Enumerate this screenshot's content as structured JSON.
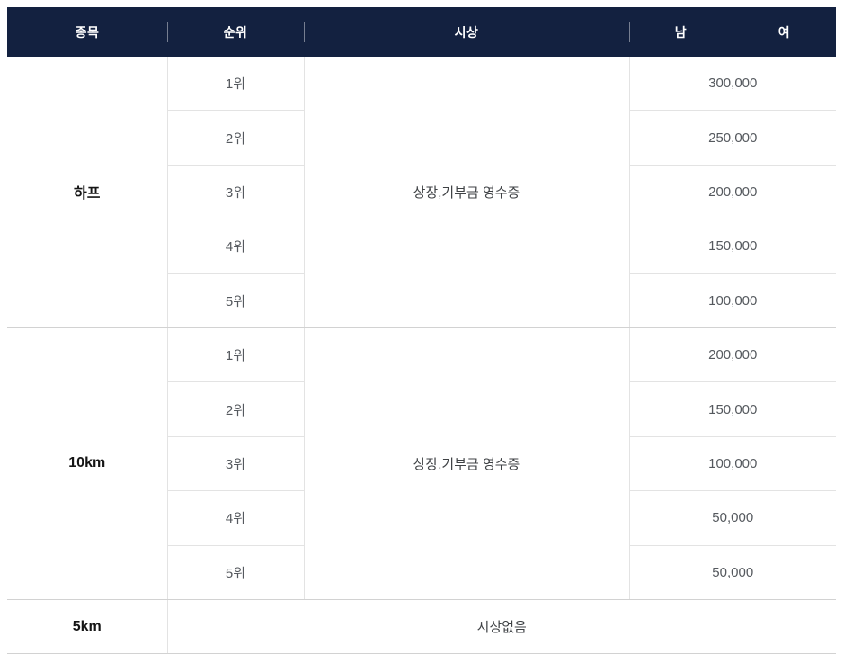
{
  "colors": {
    "header_bg": "#132140",
    "header_text": "#ffffff",
    "border": "#e3e3e3",
    "border_strong": "#d2d2d2",
    "text_dark": "#151515",
    "text_muted": "#55595e"
  },
  "table": {
    "headers": [
      {
        "label": "종목"
      },
      {
        "label": "순위"
      },
      {
        "label": "시상"
      },
      {
        "label": "남"
      },
      {
        "label": "여"
      }
    ],
    "sections": [
      {
        "event": "하프",
        "award": "상장,기부금 영수증",
        "rows": [
          {
            "rank": "1위",
            "prize": "300,000"
          },
          {
            "rank": "2위",
            "prize": "250,000"
          },
          {
            "rank": "3위",
            "prize": "200,000"
          },
          {
            "rank": "4위",
            "prize": "150,000"
          },
          {
            "rank": "5위",
            "prize": "100,000"
          }
        ]
      },
      {
        "event": "10km",
        "award": "상장,기부금 영수증",
        "rows": [
          {
            "rank": "1위",
            "prize": "200,000"
          },
          {
            "rank": "2위",
            "prize": "150,000"
          },
          {
            "rank": "3위",
            "prize": "100,000"
          },
          {
            "rank": "4위",
            "prize": "50,000"
          },
          {
            "rank": "5위",
            "prize": "50,000"
          }
        ]
      },
      {
        "event": "5km",
        "award": "시상없음",
        "rows": []
      }
    ]
  }
}
